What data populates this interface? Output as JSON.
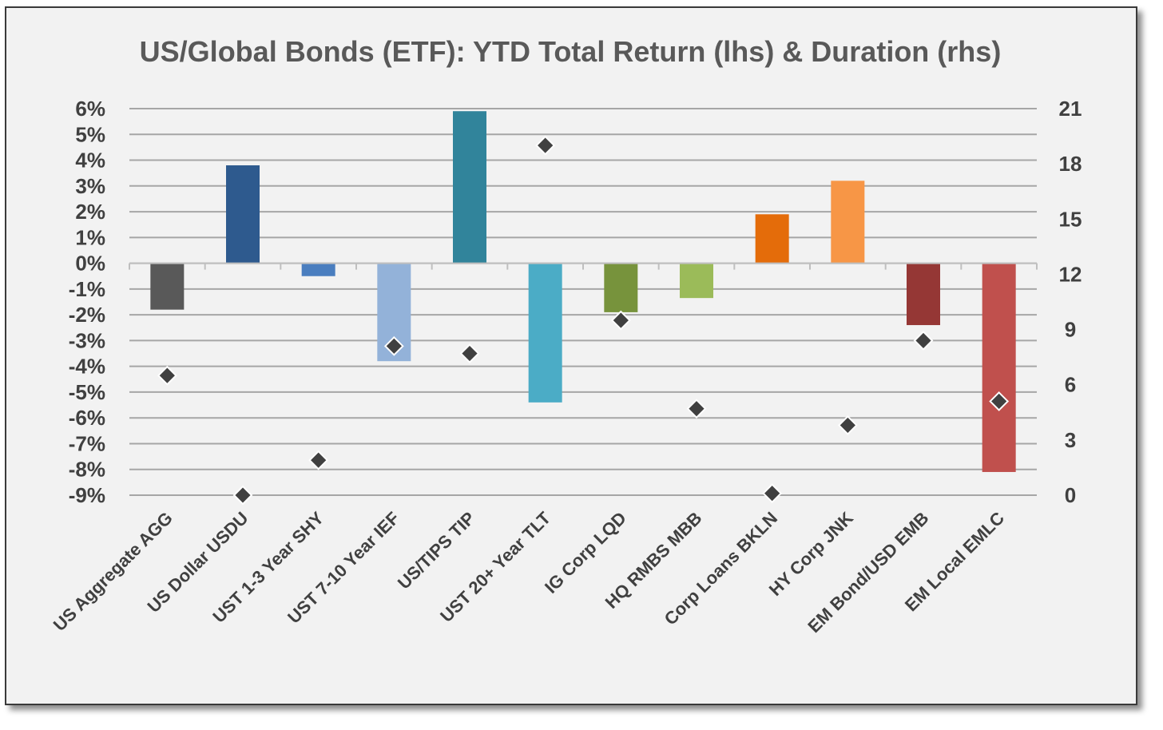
{
  "chart_data": {
    "type": "bar",
    "title": "US/Global Bonds (ETF): YTD Total Return (lhs) & Duration (rhs)",
    "categories": [
      "US Aggregate AGG",
      "US Dollar USDU",
      "UST 1-3 Year SHY",
      "UST 7-10 Year IEF",
      "US/TIPS TIP",
      "UST 20+ Year TLT",
      "IG Corp LQD",
      "HQ RMBS MBB",
      "Corp Loans BKLN",
      "HY Corp JNK",
      "EM Bond/USD EMB",
      "EM Local EMLC"
    ],
    "series": [
      {
        "axis": "left",
        "kind": "bar",
        "values": [
          -1.8,
          3.8,
          -0.5,
          -3.8,
          5.9,
          -5.4,
          -1.9,
          -1.35,
          1.9,
          3.2,
          -2.4,
          -8.1
        ]
      },
      {
        "axis": "right",
        "kind": "scatter",
        "values": [
          6.5,
          0,
          1.9,
          8.1,
          7.7,
          19,
          9.5,
          4.7,
          0.1,
          3.8,
          8.4,
          5.1
        ]
      }
    ],
    "bar_colors": [
      "#595959",
      "#2e5a8e",
      "#4a7ebf",
      "#93b2d9",
      "#31849b",
      "#4bacc6",
      "#77933c",
      "#9bbb59",
      "#e46c0a",
      "#f79646",
      "#953735",
      "#c0504d"
    ],
    "marker_color": "#404040",
    "ylim": [
      -9,
      6
    ],
    "y_ticks": [
      "6%",
      "5%",
      "4%",
      "3%",
      "2%",
      "1%",
      "0%",
      "-1%",
      "-2%",
      "-3%",
      "-4%",
      "-5%",
      "-6%",
      "-7%",
      "-8%",
      "-9%"
    ],
    "y2lim": [
      0,
      21
    ],
    "y2_ticks": [
      "21",
      "18",
      "15",
      "12",
      "9",
      "6",
      "3",
      "0"
    ],
    "grid": true,
    "legend": "none"
  }
}
